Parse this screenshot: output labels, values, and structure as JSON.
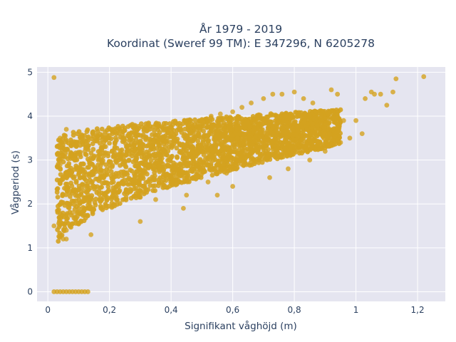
{
  "chart_data": {
    "type": "scatter",
    "title_lines": [
      "År 1979 - 2019",
      "Koordinat (Sweref 99 TM): E 347296, N 6205278"
    ],
    "xlabel": "Signifikant våghöjd (m)",
    "ylabel": "Vågperiod (s)",
    "xlim": [
      -0.035,
      1.29
    ],
    "ylim": [
      -0.22,
      5.12
    ],
    "x_ticks": [
      0,
      0.2,
      0.4,
      0.6,
      0.8,
      1,
      1.2
    ],
    "x_tick_labels": [
      "0",
      "0,2",
      "0,4",
      "0,6",
      "0,8",
      "1",
      "1,2"
    ],
    "y_ticks": [
      0,
      1,
      2,
      3,
      4,
      5
    ],
    "y_tick_labels": [
      "0",
      "1",
      "2",
      "3",
      "4",
      "5"
    ],
    "grid": true,
    "legend": "none",
    "plot_background": "#e5e5f0",
    "marker_color": "#d4a21f",
    "series": [
      {
        "x": [
          0.02,
          0.03,
          0.04,
          0.05,
          0.06,
          0.07,
          0.08,
          0.09,
          0.1,
          0.11,
          0.12,
          0.13,
          0.04,
          0.04,
          0.05,
          0.04,
          0.05,
          0.06,
          0.09,
          0.12,
          0.13,
          0.02,
          0.04,
          0.05,
          0.06,
          0.08,
          0.1,
          0.12,
          0.15,
          0.18,
          0.2,
          0.22,
          0.25,
          0.28,
          0.3,
          0.33,
          0.36,
          0.4,
          0.43,
          0.46,
          0.5,
          0.53,
          0.56,
          0.6,
          0.63,
          0.66,
          0.7,
          0.73,
          0.76,
          0.8,
          0.83,
          0.86,
          0.88,
          0.9,
          0.92,
          0.94,
          0.96,
          1.0,
          1.03,
          1.05,
          1.06,
          1.08,
          1.1,
          1.12,
          1.13,
          1.22,
          0.02,
          0.06,
          0.14,
          0.3,
          0.44,
          0.55,
          0.6,
          0.72,
          0.78,
          0.85,
          0.9,
          0.95,
          0.98,
          1.02,
          0.35,
          0.45,
          0.52,
          0.58,
          0.63
        ],
        "y": [
          0,
          0,
          0,
          0,
          0,
          0,
          0,
          0,
          0,
          0,
          0,
          0,
          3.5,
          3.3,
          3.1,
          2.9,
          2.6,
          3.7,
          3.0,
          3.2,
          3.5,
          1.5,
          1.6,
          1.2,
          1.4,
          1.8,
          2.0,
          2.3,
          2.4,
          2.6,
          2.8,
          3.0,
          3.1,
          3.2,
          3.3,
          3.4,
          3.5,
          3.6,
          3.7,
          3.8,
          3.9,
          4.0,
          4.05,
          4.1,
          4.2,
          4.3,
          4.4,
          4.5,
          4.5,
          4.55,
          4.4,
          4.3,
          3.4,
          3.6,
          4.6,
          4.5,
          3.9,
          3.9,
          4.4,
          4.55,
          4.5,
          4.5,
          4.25,
          4.55,
          4.85,
          4.9,
          4.88,
          1.2,
          1.3,
          1.6,
          1.9,
          2.2,
          2.4,
          2.6,
          2.8,
          3.0,
          3.2,
          3.4,
          3.5,
          3.6,
          2.1,
          2.2,
          2.5,
          2.7,
          2.9
        ]
      }
    ],
    "dense_bands": [
      {
        "x_start": 0.03,
        "x_end": 0.95,
        "y_low_start": 1.05,
        "y_low_end": 3.35,
        "y_high_start": 3.5,
        "y_high_end": 4.15
      }
    ]
  }
}
